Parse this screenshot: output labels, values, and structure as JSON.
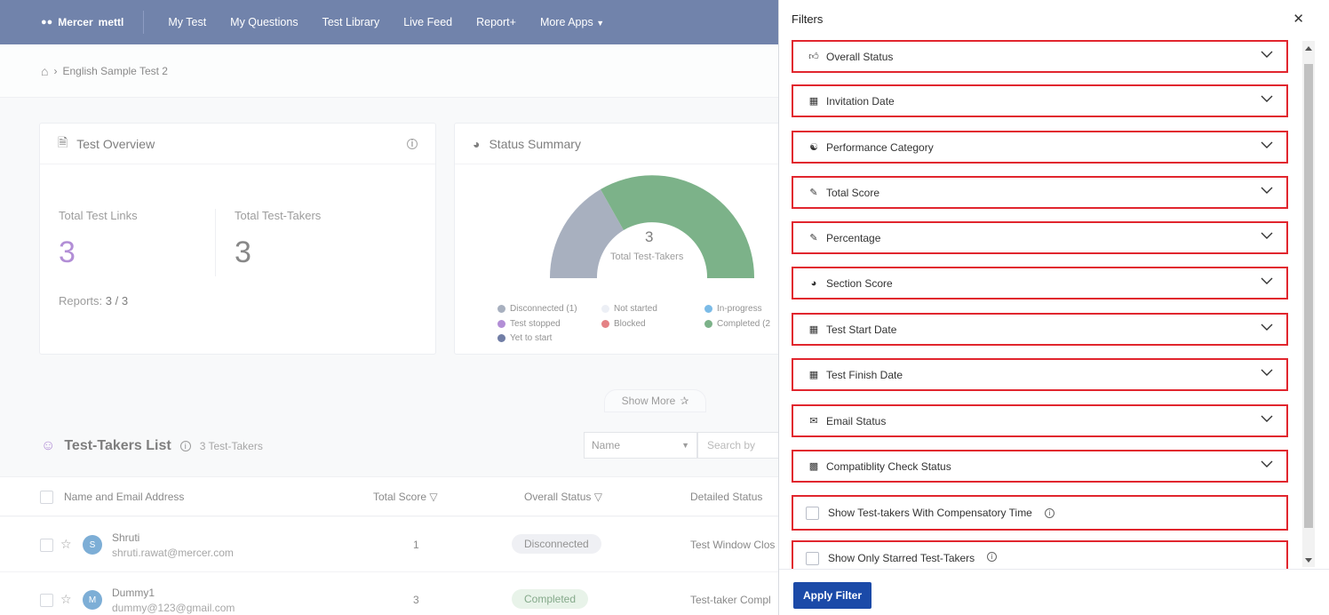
{
  "nav": {
    "brand": "Mercer",
    "brand_sub": "mettl",
    "links": [
      "My Test",
      "My Questions",
      "Test Library",
      "Live Feed",
      "Report+",
      "More Apps"
    ]
  },
  "breadcrumb": {
    "current": "English Sample Test 2"
  },
  "overview": {
    "title": "Test Overview",
    "links_label": "Total Test Links",
    "links_value": "3",
    "takers_label": "Total Test-Takers",
    "takers_value": "3",
    "reports_label": "Reports:",
    "reports_value": "3 / 3"
  },
  "status_summary": {
    "title": "Status Summary",
    "center_value": "3",
    "center_label": "Total Test-Takers",
    "legend": [
      {
        "label": "Disconnected (1)",
        "color": "#6a7891"
      },
      {
        "label": "Not started",
        "color": "#dfe3ee"
      },
      {
        "label": "In-progress",
        "color": "#1c8ad6"
      },
      {
        "label": "Test stopped",
        "color": "#7a3db8"
      },
      {
        "label": "Blocked",
        "color": "#d0282e"
      },
      {
        "label": "Completed (2",
        "color": "#1e7a34"
      },
      {
        "label": "Yet to start",
        "color": "#0c2266"
      }
    ]
  },
  "show_more": "Show More",
  "list": {
    "title": "Test-Takers List",
    "count": "3 Test-Takers",
    "select_value": "Name",
    "search_placeholder": "Search by",
    "columns": [
      "Name and Email Address",
      "Total Score",
      "Overall Status",
      "Detailed Status"
    ],
    "rows": [
      {
        "initial": "S",
        "name": "Shruti",
        "email": "shruti.rawat@mercer.com",
        "score": "1",
        "status": "Disconnected",
        "detail": "Test Window Clos"
      },
      {
        "initial": "M",
        "name": "Dummy1",
        "email": "dummy@123@gmail.com",
        "score": "3",
        "status": "Completed",
        "detail": "Test-taker Compl"
      }
    ]
  },
  "filters": {
    "title": "Filters",
    "items": [
      {
        "label": "Overall Status",
        "icon": "thumbs-up-icon"
      },
      {
        "label": "Invitation Date",
        "icon": "calendar-icon"
      },
      {
        "label": "Performance Category",
        "icon": "users-icon"
      },
      {
        "label": "Total Score",
        "icon": "pencil-icon"
      },
      {
        "label": "Percentage",
        "icon": "pencil-icon"
      },
      {
        "label": "Section Score",
        "icon": "pie-chart-icon"
      },
      {
        "label": "Test Start Date",
        "icon": "calendar-icon"
      },
      {
        "label": "Test Finish Date",
        "icon": "calendar-icon"
      },
      {
        "label": "Email Status",
        "icon": "envelope-icon"
      },
      {
        "label": "Compatiblity Check Status",
        "icon": "document-icon"
      }
    ],
    "checks": [
      {
        "label": "Show Test-takers With Compensatory Time"
      },
      {
        "label": "Show Only Starred Test-Takers"
      }
    ],
    "apply_label": "Apply Filter"
  }
}
